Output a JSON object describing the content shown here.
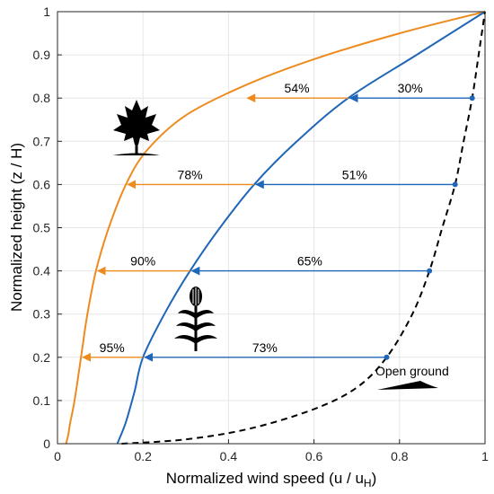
{
  "chart_data": {
    "type": "line",
    "xlabel": "Normalized wind speed (u / u",
    "xlabel_sub": "H",
    "xlabel_close": ")",
    "ylabel": "Normalized height (z / H)",
    "xlim": [
      0,
      1
    ],
    "ylim": [
      0,
      1
    ],
    "xticks": [
      "0",
      "0.2",
      "0.4",
      "0.6",
      "0.8",
      "1"
    ],
    "yticks": [
      "0",
      "0.1",
      "0.2",
      "0.3",
      "0.4",
      "0.5",
      "0.6",
      "0.7",
      "0.8",
      "0.9",
      "1"
    ],
    "grid": true,
    "series": [
      {
        "color": "#ED8B1E",
        "style": "solid",
        "points": [
          [
            0.02,
            0.0
          ],
          [
            0.025,
            0.02
          ],
          [
            0.03,
            0.05
          ],
          [
            0.04,
            0.1
          ],
          [
            0.055,
            0.2
          ],
          [
            0.07,
            0.3
          ],
          [
            0.09,
            0.4
          ],
          [
            0.12,
            0.5
          ],
          [
            0.16,
            0.6
          ],
          [
            0.21,
            0.68
          ],
          [
            0.3,
            0.76
          ],
          [
            0.44,
            0.83
          ],
          [
            0.6,
            0.89
          ],
          [
            0.8,
            0.95
          ],
          [
            1.0,
            1.0
          ]
        ]
      },
      {
        "color": "#1F66B8",
        "style": "solid",
        "points": [
          [
            0.14,
            0.0
          ],
          [
            0.16,
            0.05
          ],
          [
            0.18,
            0.12
          ],
          [
            0.2,
            0.2
          ],
          [
            0.25,
            0.3
          ],
          [
            0.31,
            0.4
          ],
          [
            0.38,
            0.5
          ],
          [
            0.46,
            0.6
          ],
          [
            0.56,
            0.7
          ],
          [
            0.68,
            0.8
          ],
          [
            0.84,
            0.9
          ],
          [
            1.0,
            1.0
          ]
        ]
      },
      {
        "color": "#000000",
        "style": "dashed",
        "points": [
          [
            0.15,
            0.0
          ],
          [
            0.3,
            0.01
          ],
          [
            0.45,
            0.035
          ],
          [
            0.6,
            0.08
          ],
          [
            0.7,
            0.13
          ],
          [
            0.77,
            0.2
          ],
          [
            0.83,
            0.3
          ],
          [
            0.87,
            0.4
          ],
          [
            0.9,
            0.5
          ],
          [
            0.93,
            0.6
          ],
          [
            0.95,
            0.7
          ],
          [
            0.97,
            0.8
          ],
          [
            0.985,
            0.9
          ],
          [
            1.0,
            1.0
          ]
        ]
      }
    ],
    "blue_arrows": [
      {
        "y": 0.2,
        "from": 0.77,
        "to": 0.2,
        "label": "73%"
      },
      {
        "y": 0.4,
        "from": 0.87,
        "to": 0.31,
        "label": "65%"
      },
      {
        "y": 0.6,
        "from": 0.93,
        "to": 0.46,
        "label": "51%"
      },
      {
        "y": 0.8,
        "from": 0.97,
        "to": 0.68,
        "label": "30%"
      }
    ],
    "orange_arrows": [
      {
        "y": 0.2,
        "from": 0.2,
        "to": 0.055,
        "label": "95%"
      },
      {
        "y": 0.4,
        "from": 0.31,
        "to": 0.09,
        "label": "90%"
      },
      {
        "y": 0.6,
        "from": 0.46,
        "to": 0.16,
        "label": "78%"
      },
      {
        "y": 0.8,
        "from": 0.68,
        "to": 0.44,
        "label": "54%"
      }
    ],
    "annotations": {
      "open_ground": "Open ground"
    },
    "icons": [
      "maple-tree-icon",
      "corn-plant-icon",
      "ground-mound-icon"
    ]
  }
}
